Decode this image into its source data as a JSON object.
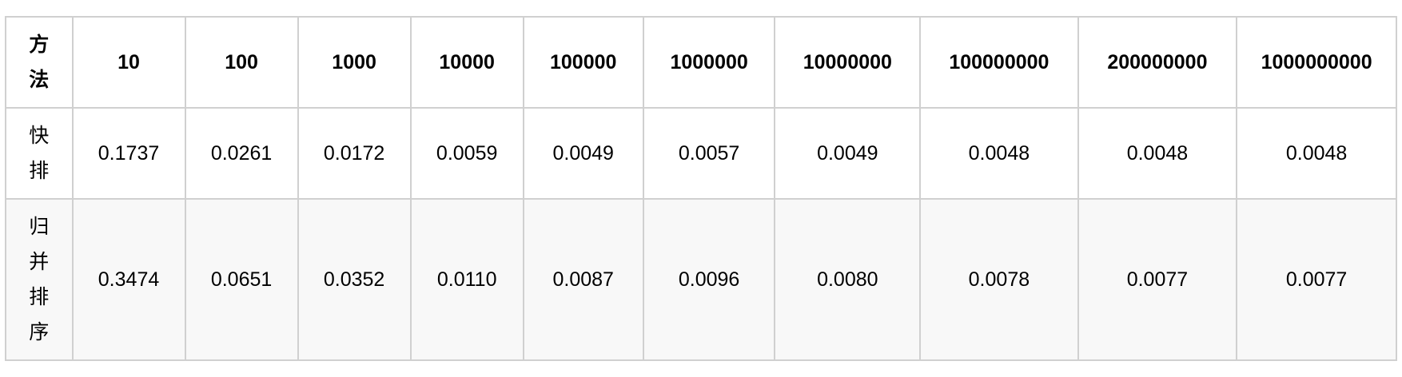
{
  "table": {
    "method_header": "方法",
    "size_headers": [
      "10",
      "100",
      "1000",
      "10000",
      "100000",
      "1000000",
      "10000000",
      "100000000",
      "200000000",
      "1000000000"
    ],
    "rows": [
      {
        "method": "快排",
        "values": [
          "0.1737",
          "0.0261",
          "0.0172",
          "0.0059",
          "0.0049",
          "0.0057",
          "0.0049",
          "0.0048",
          "0.0048",
          "0.0048"
        ]
      },
      {
        "method": "归并排序",
        "values": [
          "0.3474",
          "0.0651",
          "0.0352",
          "0.0110",
          "0.0087",
          "0.0096",
          "0.0080",
          "0.0078",
          "0.0077",
          "0.0077"
        ]
      }
    ],
    "colors": {
      "border": "#d0d0d0",
      "row_alt_background": "#f8f8f8",
      "text": "#000000"
    }
  }
}
